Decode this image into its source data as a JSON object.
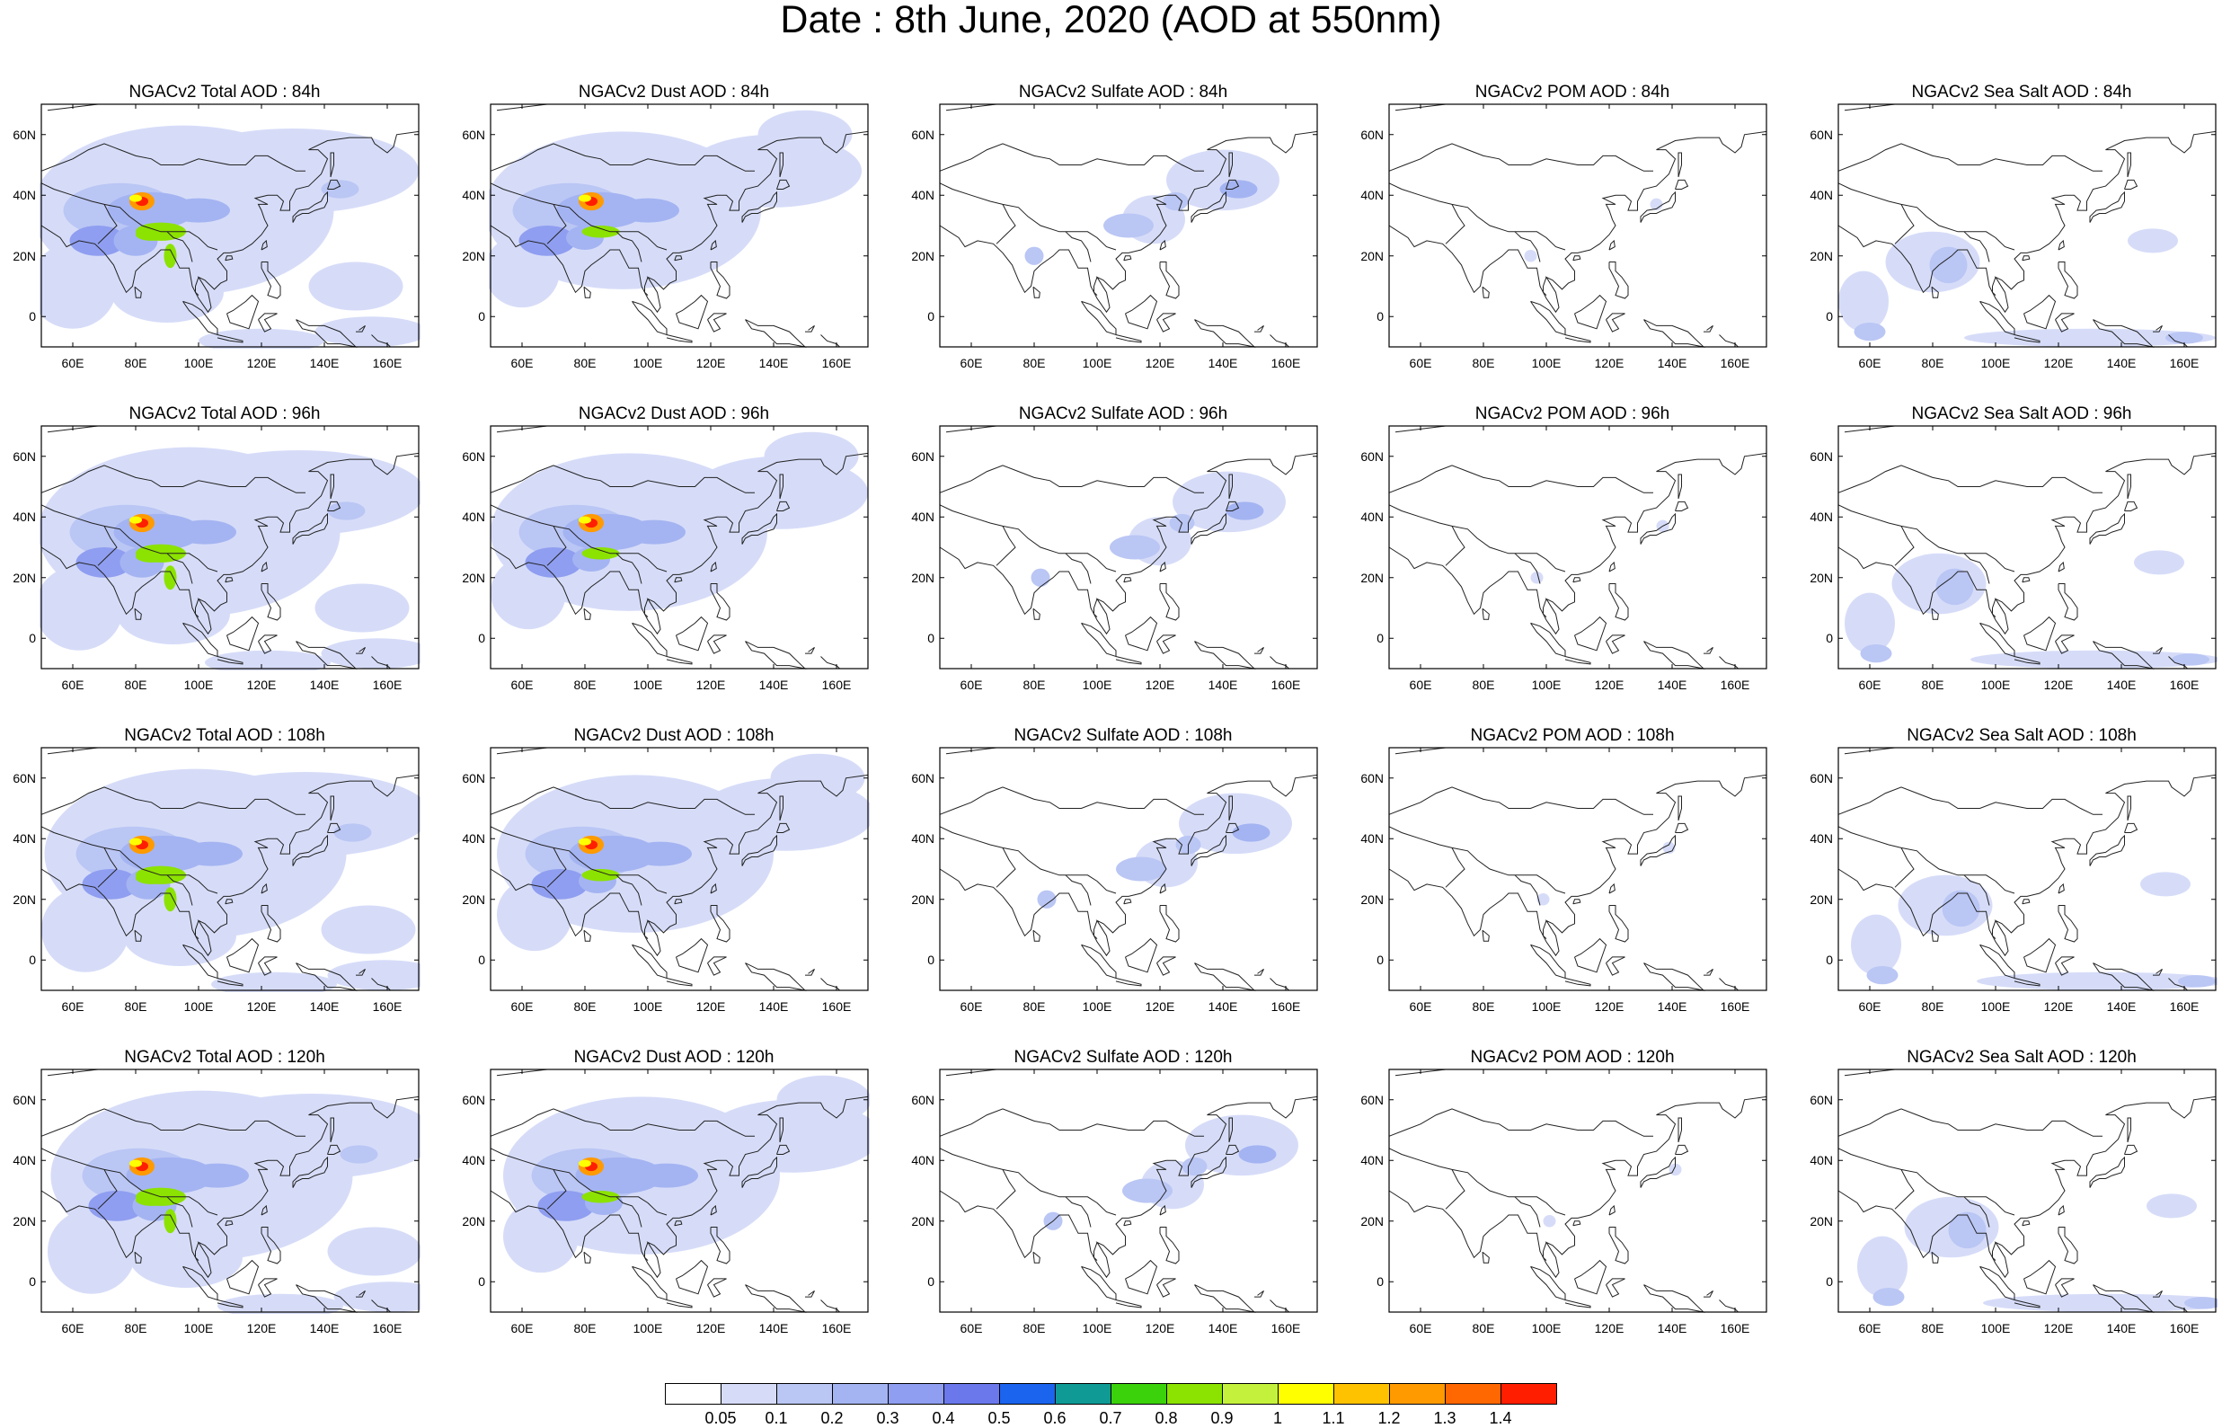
{
  "title": "Date : 8th June, 2020 (AOD at 550nm)",
  "lat_ticks": [
    "60N",
    "40N",
    "20N",
    "0"
  ],
  "lon_ticks": [
    "60E",
    "80E",
    "100E",
    "120E",
    "140E",
    "160E"
  ],
  "panels": [
    {
      "title": "NGACv2 Total AOD : 84h",
      "species": "total",
      "hour": 84
    },
    {
      "title": "NGACv2 Dust AOD : 84h",
      "species": "dust",
      "hour": 84
    },
    {
      "title": "NGACv2 Sulfate AOD : 84h",
      "species": "sulfate",
      "hour": 84
    },
    {
      "title": "NGACv2 POM AOD : 84h",
      "species": "pom",
      "hour": 84
    },
    {
      "title": "NGACv2 Sea Salt AOD : 84h",
      "species": "seasalt",
      "hour": 84
    },
    {
      "title": "NGACv2 Total AOD : 96h",
      "species": "total",
      "hour": 96
    },
    {
      "title": "NGACv2 Dust AOD : 96h",
      "species": "dust",
      "hour": 96
    },
    {
      "title": "NGACv2 Sulfate AOD : 96h",
      "species": "sulfate",
      "hour": 96
    },
    {
      "title": "NGACv2 POM AOD : 96h",
      "species": "pom",
      "hour": 96
    },
    {
      "title": "NGACv2 Sea Salt AOD : 96h",
      "species": "seasalt",
      "hour": 96
    },
    {
      "title": "NGACv2 Total AOD : 108h",
      "species": "total",
      "hour": 108
    },
    {
      "title": "NGACv2 Dust AOD : 108h",
      "species": "dust",
      "hour": 108
    },
    {
      "title": "NGACv2 Sulfate AOD : 108h",
      "species": "sulfate",
      "hour": 108
    },
    {
      "title": "NGACv2 POM AOD : 108h",
      "species": "pom",
      "hour": 108
    },
    {
      "title": "NGACv2 Sea Salt AOD : 108h",
      "species": "seasalt",
      "hour": 108
    },
    {
      "title": "NGACv2 Total AOD : 120h",
      "species": "total",
      "hour": 120
    },
    {
      "title": "NGACv2 Dust AOD : 120h",
      "species": "dust",
      "hour": 120
    },
    {
      "title": "NGACv2 Sulfate AOD : 120h",
      "species": "sulfate",
      "hour": 120
    },
    {
      "title": "NGACv2 POM AOD : 120h",
      "species": "pom",
      "hour": 120
    },
    {
      "title": "NGACv2 Sea Salt  AOD : 120h",
      "species": "seasalt",
      "hour": 120
    }
  ],
  "colorbar": {
    "labels": [
      "0.05",
      "0.1",
      "0.2",
      "0.3",
      "0.4",
      "0.5",
      "0.6",
      "0.7",
      "0.8",
      "0.9",
      "1",
      "1.1",
      "1.2",
      "1.3",
      "1.4"
    ],
    "colors": [
      "#ffffff",
      "#d6dcf8",
      "#bac6f4",
      "#a4b4f2",
      "#8f9ef0",
      "#6a78ec",
      "#1a64ee",
      "#0f9a96",
      "#3bd10b",
      "#8ce200",
      "#c4f23c",
      "#ffff00",
      "#ffc200",
      "#ff9a00",
      "#ff6800",
      "#ff1e00"
    ]
  }
}
